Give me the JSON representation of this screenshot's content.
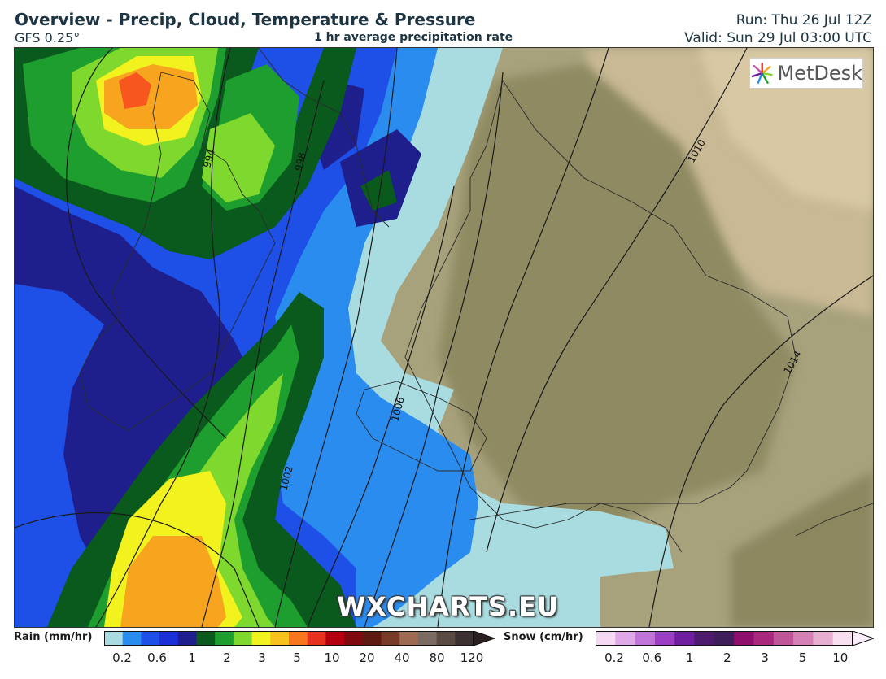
{
  "header": {
    "title": "Overview - Precip, Cloud, Temperature & Pressure",
    "model": "GFS 0.25°",
    "subtitle": "1 hr average precipitation rate",
    "run": "Run: Thu 26 Jul 12Z",
    "valid": "Valid: Sun 29 Jul 03:00 UTC"
  },
  "map": {
    "isobar_labels": [
      "994",
      "998",
      "1002",
      "1006",
      "1010",
      "1014"
    ],
    "logo_text": "MetDesk",
    "watermark": "WXCHARTS.EU"
  },
  "legend": {
    "rain": {
      "label": "Rain (mm/hr)",
      "colors": [
        "#a8dce0",
        "#2b8cf0",
        "#1e4fe6",
        "#1a2fd6",
        "#1e1e8c",
        "#0a5a1e",
        "#1e9e2e",
        "#7ed82e",
        "#f2f21e",
        "#f7c21e",
        "#f7761e",
        "#e8301e",
        "#b4000e",
        "#7e0a0e",
        "#5e1a10",
        "#7a3a2a",
        "#9e6a52",
        "#7a6a62",
        "#5a4a44",
        "#3a3030"
      ],
      "ticks": [
        "0.2",
        "0.6",
        "1",
        "2",
        "3",
        "5",
        "10",
        "20",
        "40",
        "80",
        "120"
      ]
    },
    "snow": {
      "label": "Snow (cm/hr)",
      "colors": [
        "#f4d8f4",
        "#e0a8e8",
        "#c074d8",
        "#9a3ec4",
        "#6e1e9e",
        "#4e1a6e",
        "#3e1e5a",
        "#8e0e6e",
        "#a8287e",
        "#c0569a",
        "#d480b4",
        "#e8aed0",
        "#f8e0f0"
      ],
      "ticks": [
        "0.2",
        "0.6",
        "1",
        "2",
        "3",
        "5",
        "10"
      ]
    }
  }
}
